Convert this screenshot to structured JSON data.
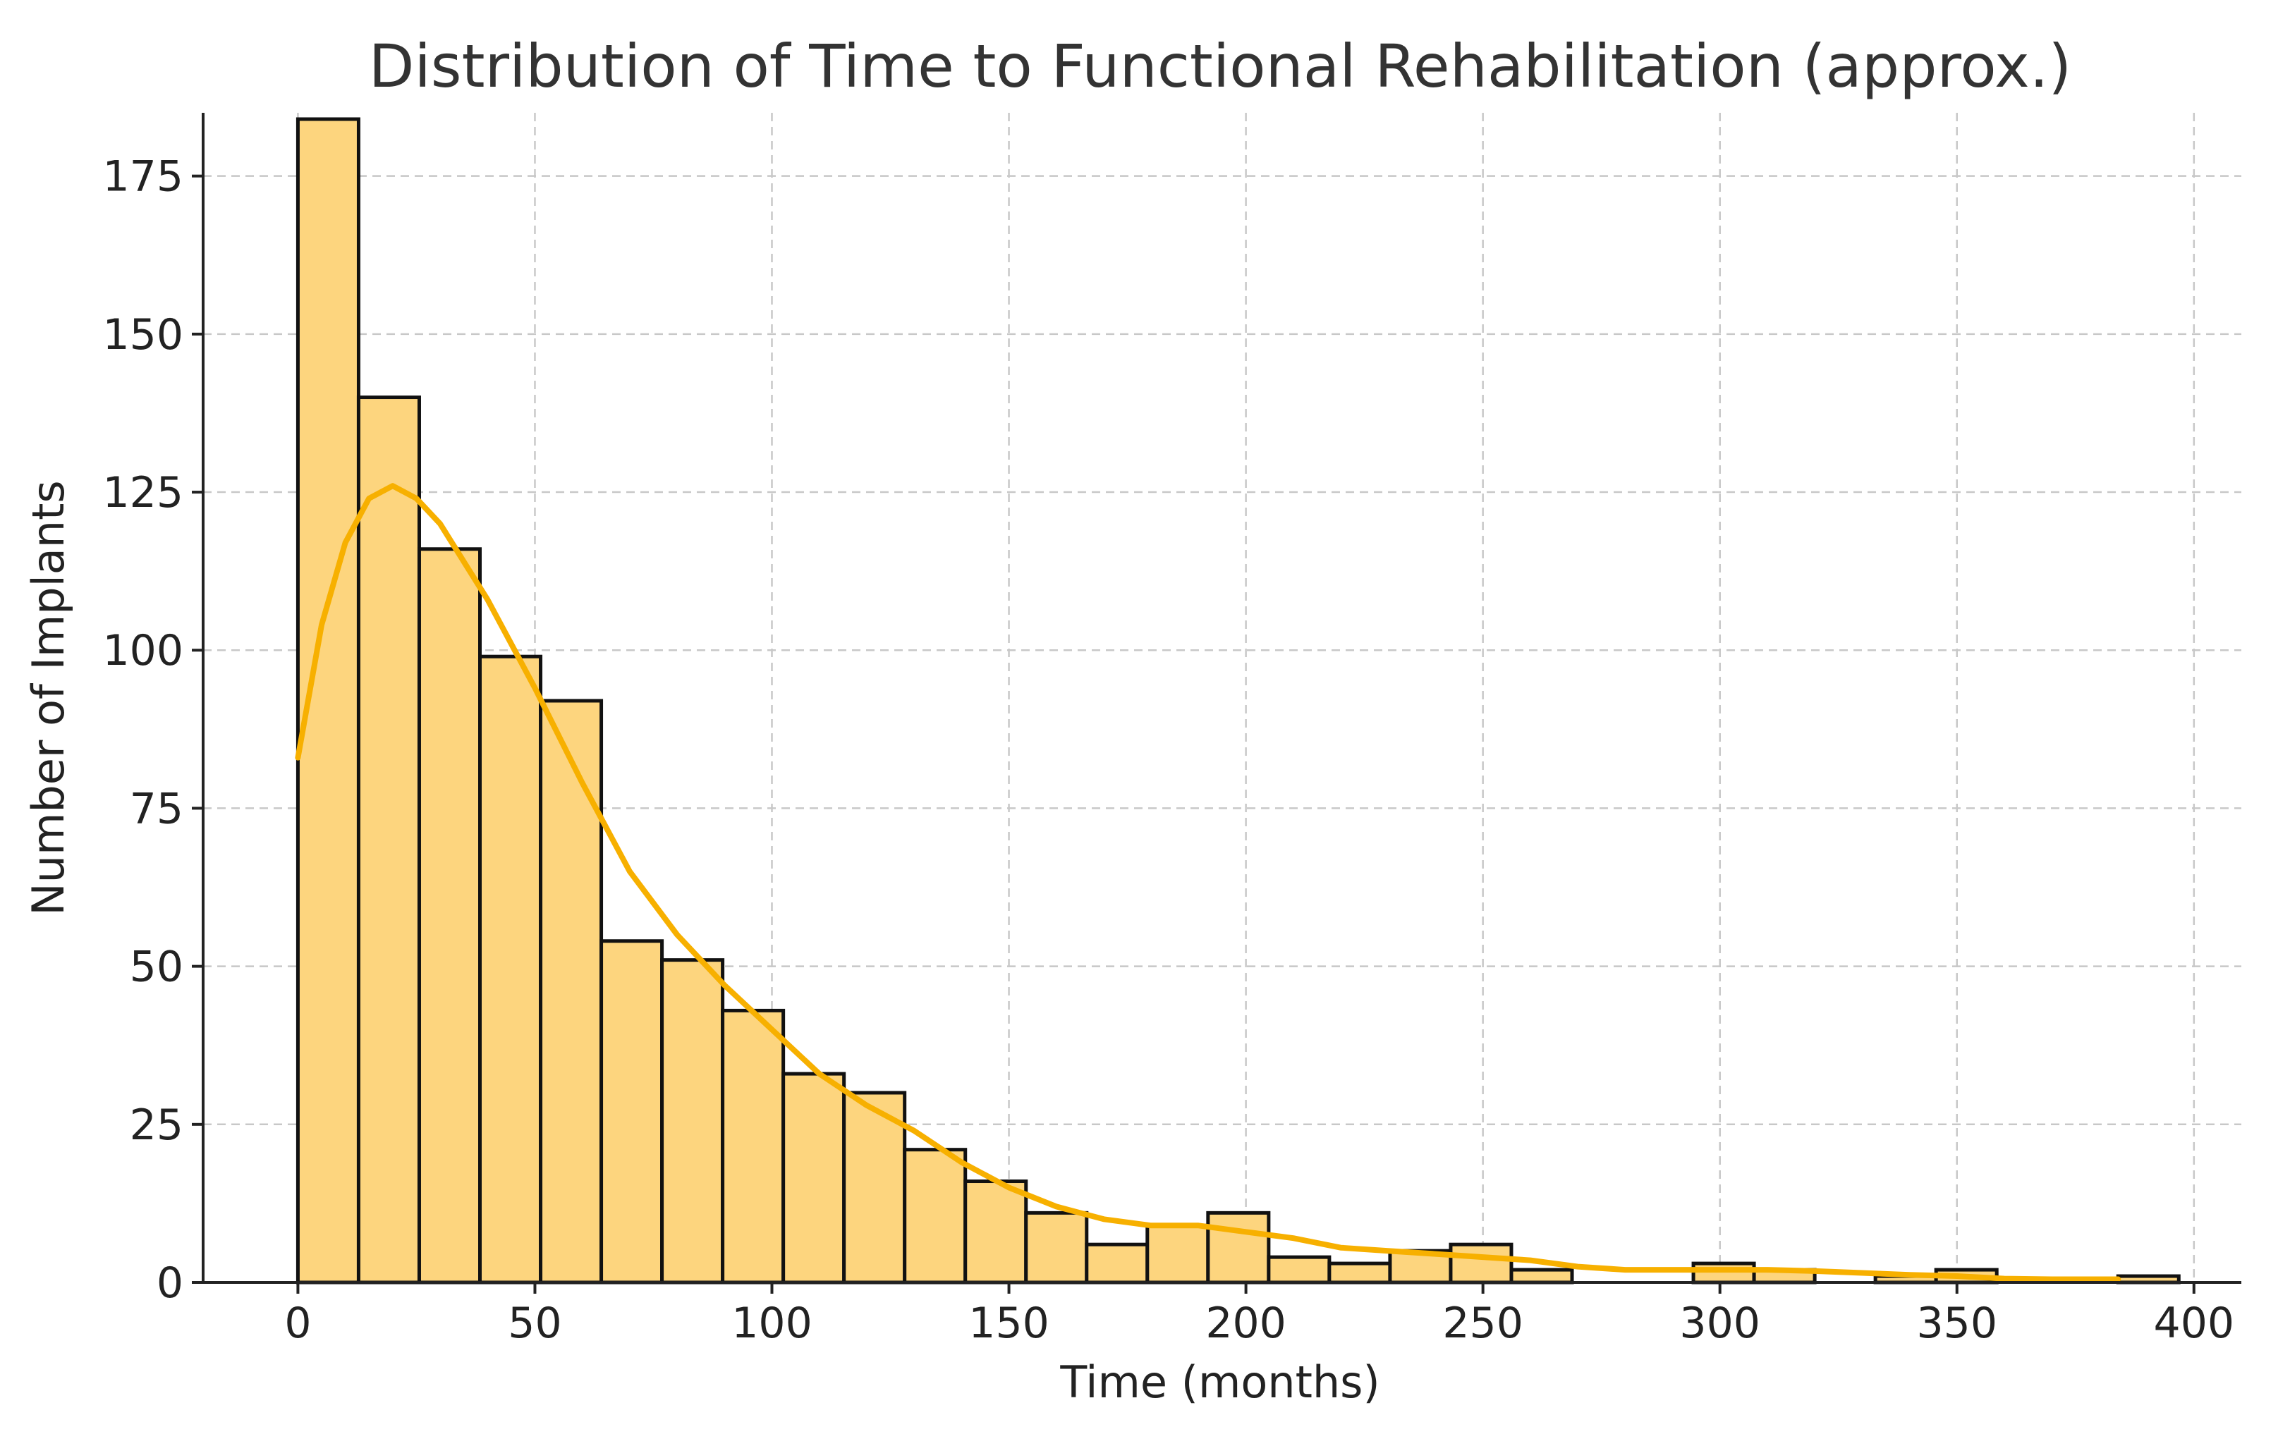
{
  "chart_data": {
    "type": "bar",
    "subtype": "histogram",
    "title": "Distribution of Time to Functional Rehabilitation (approx.)",
    "xlabel": "Time (months)",
    "ylabel": "Number of Implants",
    "xlim": [
      -20,
      410
    ],
    "ylim": [
      0,
      185
    ],
    "xticks": [
      0,
      50,
      100,
      150,
      200,
      250,
      300,
      350,
      400
    ],
    "yticks": [
      0,
      25,
      50,
      75,
      100,
      125,
      150,
      175
    ],
    "grid": true,
    "colors": {
      "bar_fill": "#fdd57e",
      "bar_edge": "#111111",
      "kde": "#f7b000",
      "grid": "#c8c8c8"
    },
    "bins": {
      "start": 0,
      "width": 12.8,
      "counts": [
        184,
        140,
        116,
        99,
        92,
        54,
        51,
        43,
        33,
        30,
        21,
        16,
        11,
        6,
        9,
        11,
        4,
        3,
        5,
        6,
        2,
        0,
        0,
        3,
        2,
        0,
        1,
        2,
        0,
        0,
        1
      ]
    },
    "kde_curve": {
      "x": [
        0,
        5,
        10,
        15,
        20,
        25,
        30,
        40,
        50,
        60,
        70,
        80,
        90,
        100,
        110,
        120,
        130,
        140,
        150,
        160,
        170,
        180,
        190,
        200,
        210,
        220,
        230,
        240,
        250,
        260,
        270,
        280,
        290,
        300,
        310,
        320,
        330,
        340,
        350,
        360,
        370,
        384
      ],
      "y": [
        83,
        104,
        117,
        124,
        126,
        124,
        120,
        108,
        94,
        79,
        65,
        55,
        47,
        40,
        33,
        28,
        24,
        19,
        15,
        12,
        10,
        9,
        9,
        8,
        7,
        5.5,
        5,
        4.5,
        4,
        3.5,
        2.5,
        2,
        2,
        2,
        2,
        1.8,
        1.5,
        1.2,
        1,
        0.6,
        0.5,
        0.5
      ]
    }
  }
}
